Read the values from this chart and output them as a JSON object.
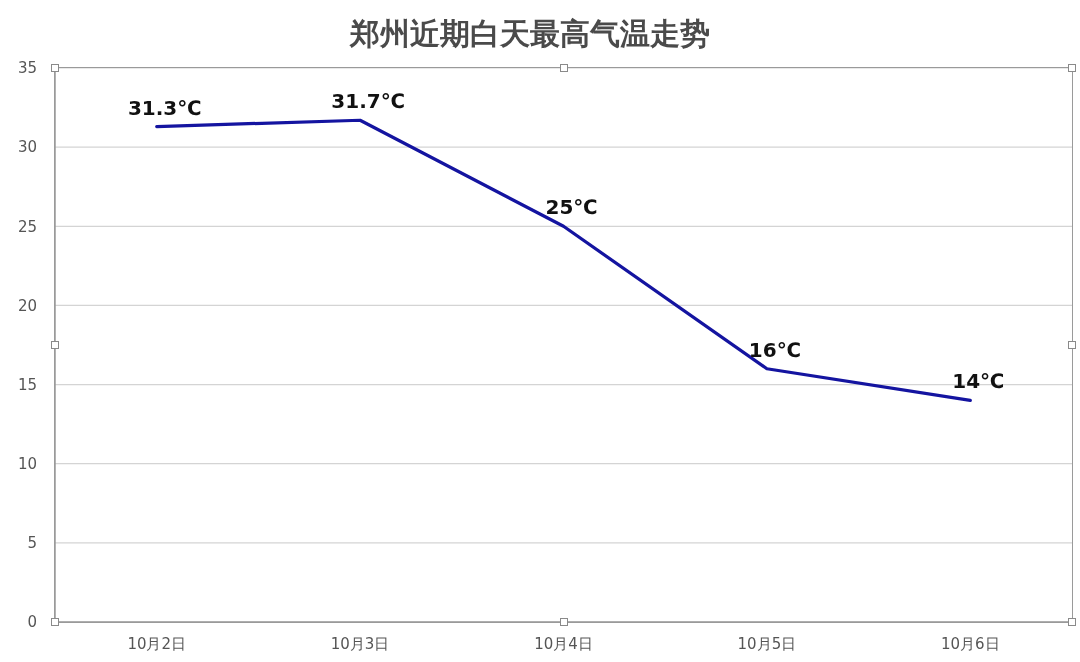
{
  "chart_data": {
    "type": "line",
    "title": "郑州近期白天最高气温走势",
    "categories": [
      "10月2日",
      "10月3日",
      "10月4日",
      "10月5日",
      "10月6日"
    ],
    "series": [
      {
        "color": "#1414a0",
        "values": [
          31.3,
          31.7,
          25,
          16,
          14
        ],
        "value_labels": [
          "31.3℃",
          "31.7℃",
          "25℃",
          "16℃",
          "14℃"
        ]
      }
    ],
    "ylim": [
      0,
      35
    ],
    "yticks": [
      0,
      5,
      10,
      15,
      20,
      25,
      30,
      35
    ],
    "grid": "y",
    "marker": "none"
  }
}
